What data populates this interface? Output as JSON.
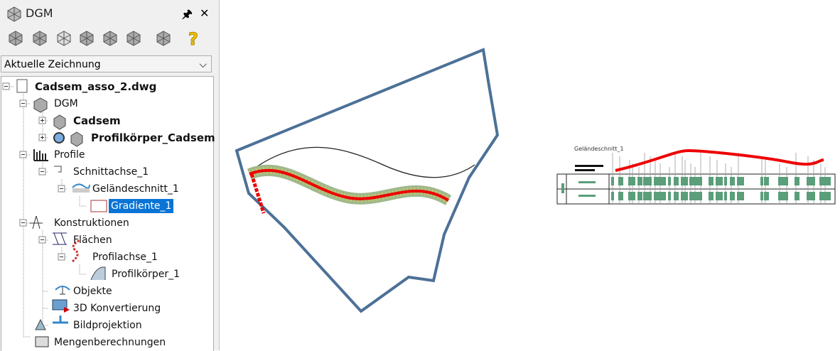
{
  "panel": {
    "title": "DGM",
    "dropdown": "Aktuelle Zeichnung",
    "tree": [
      "Cadsem_asso_2.dwg",
      "DGM",
      "Cadsem",
      "Profilkörper_Cadsem",
      "Profile",
      "Schnittachse_1",
      "Geländeschnitt_1",
      "Gradiente_1",
      "Konstruktionen",
      "Flächen",
      "Profilachse_1",
      "Profilkörper_1",
      "Objekte",
      "3D Konvertierung",
      "Bildprojektion",
      "Mengenberechnungen"
    ]
  },
  "drawing": {
    "profile_label": "Geländeschnitt_1"
  }
}
